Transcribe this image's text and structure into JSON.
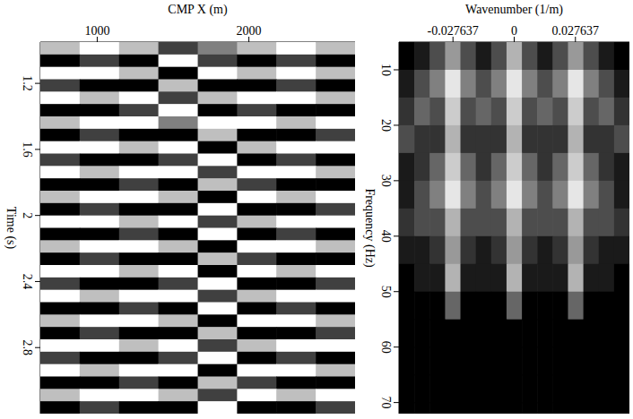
{
  "chart_data": [
    {
      "type": "heatmap",
      "x_label": "CMP X (m)",
      "y_label": "Time (s)",
      "color": "gray",
      "xlim": [
        625,
        2700
      ],
      "ylim": [
        0.95,
        3.2
      ],
      "xticks": [
        1000,
        2000
      ],
      "yticks": [
        1.2,
        1.6,
        2,
        2.4,
        2.8
      ],
      "color_range": [
        -1,
        1
      ],
      "x_edges": [
        625,
        884,
        1144,
        1403,
        1663,
        1922,
        2181,
        2441,
        2700
      ],
      "y_edges": [
        0.95,
        1.025,
        1.1,
        1.175,
        1.25,
        1.325,
        1.4,
        1.475,
        1.55,
        1.625,
        1.7,
        1.775,
        1.85,
        1.925,
        2,
        2.075,
        2.15,
        2.225,
        2.3,
        2.375,
        2.45,
        2.525,
        2.6,
        2.675,
        2.75,
        2.825,
        2.9,
        2.975,
        3.05,
        3.125,
        3.2
      ],
      "cells": [
        [
          0.5,
          1,
          0.5,
          -0.5,
          0,
          0.5,
          1,
          0.5
        ],
        [
          -1,
          -0.5,
          -1,
          1,
          -0.5,
          -1,
          -0.5,
          -1
        ],
        [
          1,
          1,
          0.5,
          -1,
          1,
          0.5,
          1,
          0.5
        ],
        [
          -0.5,
          -1,
          -1,
          0.5,
          -1,
          -1,
          -0.5,
          -1
        ],
        [
          1,
          0.5,
          1,
          -0.5,
          0.5,
          1,
          1,
          0.5
        ],
        [
          -1,
          -1,
          -0.5,
          1,
          -1,
          -0.5,
          -1,
          -1
        ],
        [
          0.5,
          1,
          1,
          0,
          1,
          1,
          0.5,
          1
        ],
        [
          -1,
          -0.5,
          -1,
          -1,
          0.5,
          -1,
          -1,
          -0.5
        ],
        [
          1,
          1,
          0.5,
          1,
          -1,
          0.5,
          1,
          1
        ],
        [
          -0.5,
          -1,
          -1,
          -0.5,
          1,
          -1,
          -0.5,
          -1
        ],
        [
          1,
          0.5,
          1,
          1,
          -0.5,
          1,
          1,
          0.5
        ],
        [
          -1,
          -1,
          -0.5,
          -1,
          0.5,
          -0.5,
          -1,
          -1
        ],
        [
          0.5,
          1,
          1,
          0.5,
          -1,
          1,
          0.5,
          1
        ],
        [
          -1,
          -0.5,
          -1,
          -1,
          1,
          -1,
          -1,
          -0.5
        ],
        [
          1,
          1,
          0.5,
          1,
          -0.5,
          0.5,
          1,
          1
        ],
        [
          -1,
          -1,
          -0.5,
          -1,
          1,
          -1,
          -0.5,
          -1
        ],
        [
          0.5,
          1,
          1,
          0.5,
          -1,
          1,
          1,
          0.5
        ],
        [
          -1,
          -0.5,
          -1,
          -1,
          0.5,
          -0.5,
          -1,
          -1
        ],
        [
          1,
          1,
          0.5,
          1,
          -1,
          1,
          0.5,
          1
        ],
        [
          -0.5,
          -1,
          -1,
          -0.5,
          1,
          -1,
          -1,
          -0.5
        ],
        [
          1,
          0.5,
          1,
          1,
          -0.5,
          0.5,
          1,
          1
        ],
        [
          -1,
          -1,
          -0.5,
          -1,
          1,
          -1,
          -0.5,
          -1
        ],
        [
          0.5,
          1,
          1,
          0.5,
          -1,
          1,
          1,
          0.5
        ],
        [
          -1,
          -0.5,
          -1,
          -1,
          0.5,
          -1,
          -1,
          -0.5
        ],
        [
          1,
          1,
          0.5,
          1,
          -0.5,
          0.5,
          1,
          1
        ],
        [
          -0.5,
          -1,
          -1,
          -0.5,
          1,
          -1,
          -0.5,
          -1
        ],
        [
          1,
          0.5,
          1,
          1,
          -1,
          1,
          1,
          0.5
        ],
        [
          -1,
          -1,
          -0.5,
          -1,
          0.5,
          -0.5,
          -1,
          -1
        ],
        [
          0.5,
          1,
          1,
          0.5,
          -0.5,
          1,
          0.5,
          1
        ],
        [
          -1,
          -0.5,
          -1,
          -1,
          1,
          -1,
          -1,
          -0.5
        ]
      ]
    },
    {
      "type": "heatmap",
      "x_label": "Wavenumber (1/m)",
      "y_label": "Frequency (Hz)",
      "color": "gray",
      "xlim": [
        -0.052,
        0.052
      ],
      "ylim": [
        5,
        72
      ],
      "xticks": [
        -0.027637,
        0,
        0.027637
      ],
      "yticks": [
        10,
        20,
        30,
        40,
        50,
        60,
        70
      ],
      "color_range": [
        0,
        1
      ],
      "x_edges": [
        -0.052,
        -0.04507,
        -0.03813,
        -0.0312,
        -0.02427,
        -0.01733,
        -0.0104,
        -0.00347,
        0.00347,
        0.0104,
        0.01733,
        0.02427,
        0.0312,
        0.03813,
        0.04507,
        0.052
      ],
      "y_edges": [
        5,
        10,
        15,
        20,
        25,
        30,
        35,
        40,
        45,
        50,
        55,
        60,
        65,
        70,
        72
      ],
      "cells": [
        [
          0,
          0.1,
          0.3,
          0.6,
          0.3,
          0.1,
          0.3,
          0.7,
          0.3,
          0.1,
          0.3,
          0.6,
          0.3,
          0.1,
          0
        ],
        [
          0.1,
          0.3,
          0.5,
          0.9,
          0.5,
          0.3,
          0.5,
          0.9,
          0.5,
          0.3,
          0.5,
          0.9,
          0.5,
          0.3,
          0.1
        ],
        [
          0.2,
          0.4,
          0.3,
          0.8,
          0.3,
          0.4,
          0.3,
          0.8,
          0.3,
          0.4,
          0.3,
          0.8,
          0.3,
          0.4,
          0.2
        ],
        [
          0.3,
          0.2,
          0.2,
          0.7,
          0.2,
          0.2,
          0.2,
          0.7,
          0.2,
          0.2,
          0.2,
          0.7,
          0.2,
          0.2,
          0.3
        ],
        [
          0.1,
          0.2,
          0.4,
          0.8,
          0.4,
          0.2,
          0.4,
          0.8,
          0.4,
          0.2,
          0.4,
          0.8,
          0.4,
          0.2,
          0.1
        ],
        [
          0.1,
          0.3,
          0.5,
          0.9,
          0.5,
          0.3,
          0.5,
          0.9,
          0.5,
          0.3,
          0.5,
          0.9,
          0.5,
          0.3,
          0.1
        ],
        [
          0.2,
          0.3,
          0.3,
          0.7,
          0.3,
          0.3,
          0.3,
          0.7,
          0.3,
          0.3,
          0.3,
          0.7,
          0.3,
          0.3,
          0.2
        ],
        [
          0.1,
          0.1,
          0.2,
          0.6,
          0.2,
          0.1,
          0.2,
          0.6,
          0.2,
          0.1,
          0.2,
          0.6,
          0.2,
          0.1,
          0.1
        ],
        [
          0,
          0.1,
          0.1,
          0.7,
          0.1,
          0.1,
          0.1,
          0.7,
          0.1,
          0.1,
          0.1,
          0.7,
          0.1,
          0.1,
          0
        ],
        [
          0,
          0,
          0,
          0.4,
          0,
          0,
          0,
          0.4,
          0,
          0,
          0,
          0.4,
          0,
          0,
          0
        ],
        [
          0,
          0,
          0,
          0,
          0,
          0,
          0,
          0,
          0,
          0,
          0,
          0,
          0,
          0,
          0
        ],
        [
          0,
          0,
          0,
          0,
          0,
          0,
          0,
          0,
          0,
          0,
          0,
          0,
          0,
          0,
          0
        ],
        [
          0,
          0,
          0,
          0,
          0,
          0,
          0,
          0,
          0,
          0,
          0,
          0,
          0,
          0,
          0
        ],
        [
          0,
          0,
          0,
          0,
          0,
          0,
          0,
          0,
          0,
          0,
          0,
          0,
          0,
          0,
          0
        ]
      ]
    }
  ]
}
